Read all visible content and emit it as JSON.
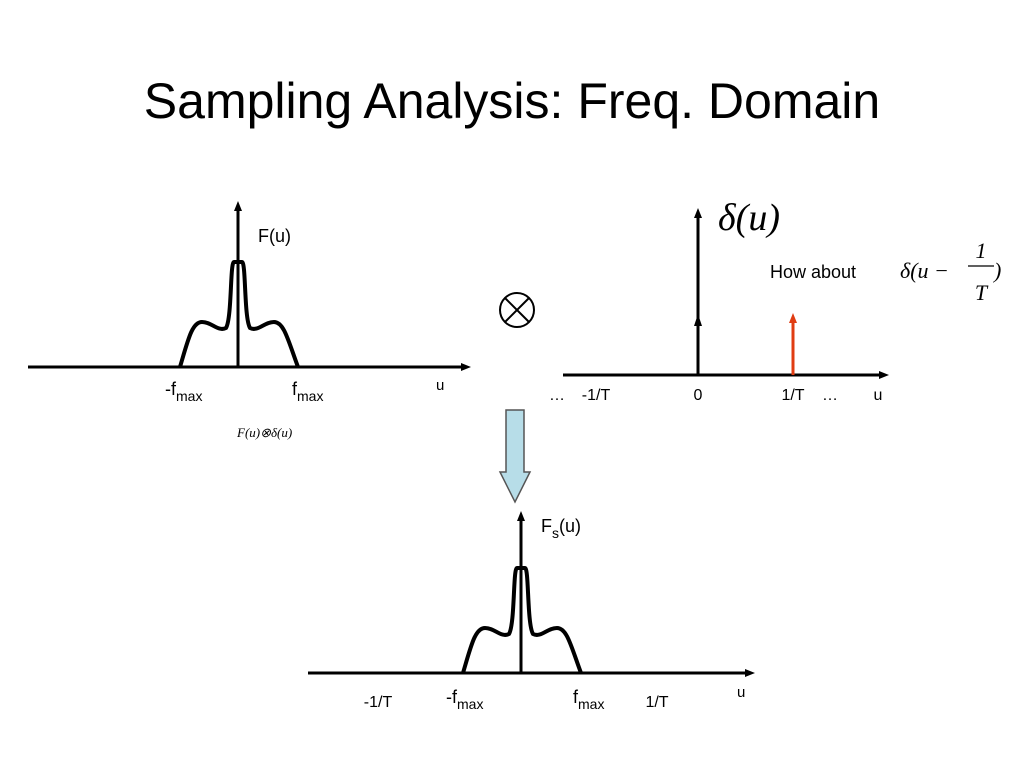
{
  "header": {
    "title": "Sampling Analysis: Freq. Domain"
  },
  "left_plot": {
    "y_label": "F(u)",
    "neg_label": {
      "base": "-f",
      "sub": "max"
    },
    "pos_label": {
      "base": "f",
      "sub": "max"
    },
    "x_label": "u",
    "caption": "F(u)⊗δ(u)"
  },
  "operator": "⊗",
  "right_plot": {
    "y_label": "δ(u)",
    "question": "How about",
    "formula": {
      "pre": "δ(u −",
      "num": "1",
      "den": "T",
      "post": ")"
    },
    "ticks": [
      "…",
      "-1/T",
      "0",
      "1/T",
      "…"
    ],
    "x_label": "u"
  },
  "result_plot": {
    "y_label": {
      "base": "F",
      "sub": "s",
      "post": "(u)"
    },
    "left_tick": "-1/T",
    "neg_label": {
      "base": "-f",
      "sub": "max"
    },
    "pos_label": {
      "base": "f",
      "sub": "max"
    },
    "right_tick": "1/T",
    "x_label": "u"
  }
}
